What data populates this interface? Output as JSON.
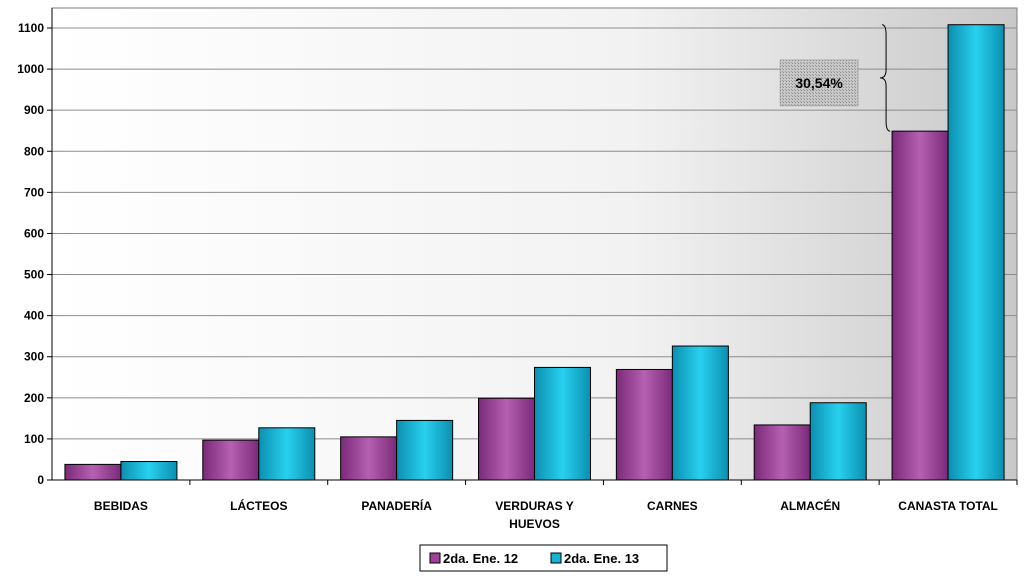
{
  "chart_data": {
    "type": "bar",
    "categories": [
      "BEBIDAS",
      "LÁCTEOS",
      "PANADERÍA",
      "VERDURAS Y HUEVOS",
      "CARNES",
      "ALMACÉN",
      "CANASTA TOTAL"
    ],
    "category_lines": [
      [
        "BEBIDAS"
      ],
      [
        "LÁCTEOS"
      ],
      [
        "PANADERÍA"
      ],
      [
        "VERDURAS Y",
        "HUEVOS"
      ],
      [
        "CARNES"
      ],
      [
        "ALMACÉN"
      ],
      [
        "CANASTA TOTAL"
      ]
    ],
    "series": [
      {
        "name": "2da. Ene. 12",
        "color": "#9E3F9A",
        "values": [
          38,
          97,
          105,
          199,
          269,
          134,
          849
        ]
      },
      {
        "name": "2da. Ene. 13",
        "color": "#14B4D6",
        "values": [
          45,
          127,
          145,
          274,
          326,
          188,
          1108
        ]
      }
    ],
    "ylim": [
      0,
      1100
    ],
    "yticks": [
      0,
      100,
      200,
      300,
      400,
      500,
      600,
      700,
      800,
      900,
      1000,
      1100
    ],
    "grid": true,
    "legend_position": "bottom-center",
    "annotation": {
      "text": "30,54%",
      "category": "CANASTA TOTAL"
    },
    "title": "",
    "xlabel": "",
    "ylabel": ""
  }
}
